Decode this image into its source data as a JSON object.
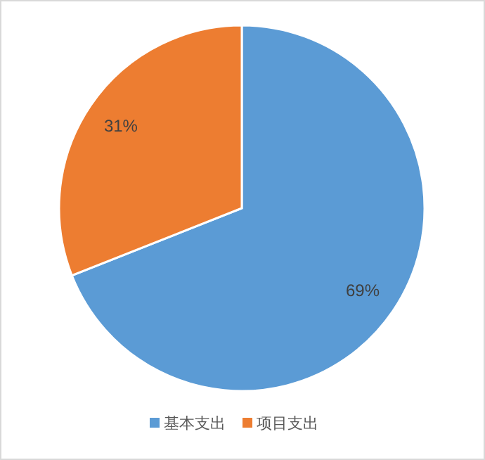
{
  "chart_data": {
    "type": "pie",
    "categories": [
      "基本支出",
      "项目支出"
    ],
    "values": [
      69,
      31
    ],
    "colors": [
      "#5b9bd5",
      "#ed7d31"
    ],
    "value_labels": [
      "69%",
      "31%"
    ],
    "legend": "bottom"
  }
}
